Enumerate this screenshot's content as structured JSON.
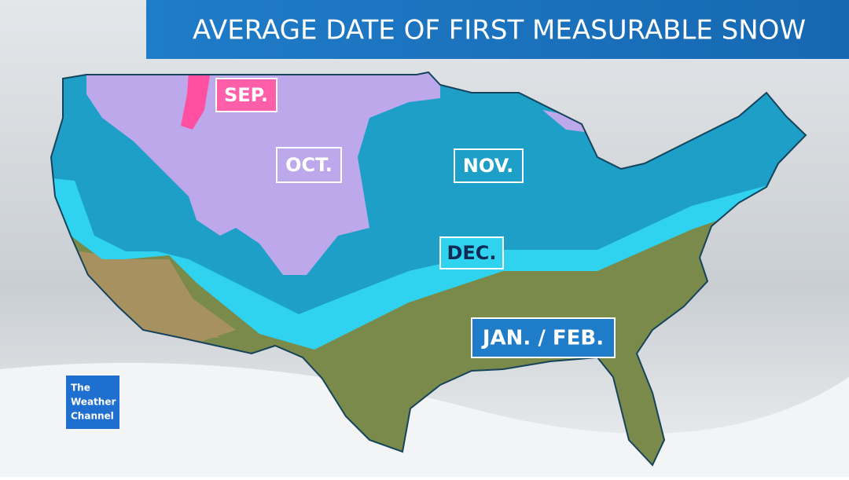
{
  "title": "AVERAGE DATE OF FIRST MEASURABLE SNOW",
  "zones": [
    {
      "label": "SEP."
    },
    {
      "label": "OCT."
    },
    {
      "label": "NOV."
    },
    {
      "label": "DEC."
    },
    {
      "label": "JAN. / FEB."
    }
  ],
  "logo": {
    "lines": [
      "The",
      "Weather",
      "Channel"
    ]
  }
}
